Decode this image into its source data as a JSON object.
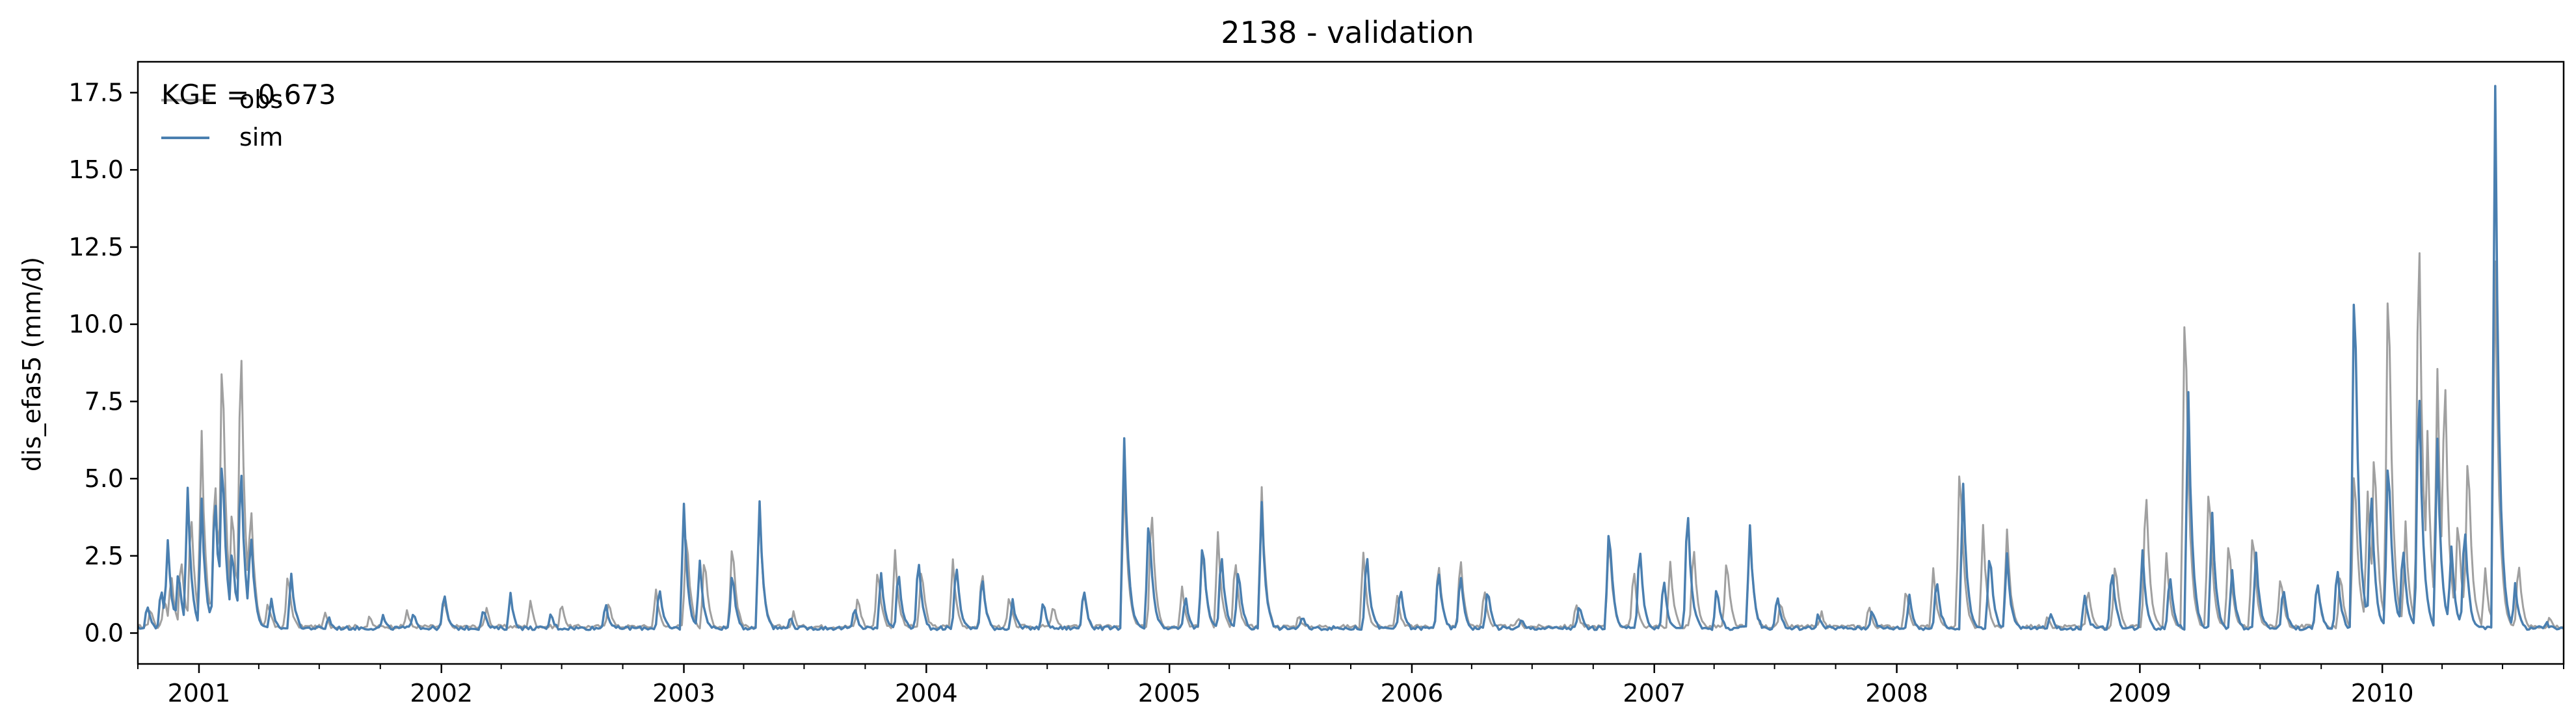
{
  "chart_data": {
    "type": "line",
    "title": "2138 - validation",
    "xlabel": "",
    "ylabel": "dis_efas5 (mm/d)",
    "annotation": "KGE = 0.673",
    "xlim": [
      "2000-10-01",
      "2010-10-01"
    ],
    "ylim": [
      -1.0,
      18.5
    ],
    "yticks": [
      0.0,
      2.5,
      5.0,
      7.5,
      10.0,
      12.5,
      15.0,
      17.5
    ],
    "ytick_labels": [
      "0.0",
      "2.5",
      "5.0",
      "7.5",
      "10.0",
      "12.5",
      "15.0",
      "17.5"
    ],
    "xtick_labels": [
      "2001",
      "2002",
      "2003",
      "2004",
      "2005",
      "2006",
      "2007",
      "2008",
      "2009",
      "2010"
    ],
    "xtick_dates": [
      "2001-01-01",
      "2002-01-01",
      "2003-01-01",
      "2004-01-01",
      "2005-01-01",
      "2006-01-01",
      "2007-01-01",
      "2008-01-01",
      "2009-01-01",
      "2010-01-01"
    ],
    "legend_position": "top-left",
    "grid": false,
    "series": [
      {
        "name": "obs",
        "color": "#a0a0a0",
        "baseline": 0.15,
        "peaks": [
          [
            "2000-10-20",
            0.8
          ],
          [
            "2000-11-10",
            1.2
          ],
          [
            "2000-11-20",
            2.0
          ],
          [
            "2000-12-05",
            2.6
          ],
          [
            "2000-12-20",
            4.2
          ],
          [
            "2001-01-05",
            6.5
          ],
          [
            "2001-01-25",
            5.5
          ],
          [
            "2001-02-05",
            10.0
          ],
          [
            "2001-02-20",
            4.5
          ],
          [
            "2001-03-05",
            10.3
          ],
          [
            "2001-03-20",
            4.5
          ],
          [
            "2001-04-15",
            1.0
          ],
          [
            "2001-05-15",
            2.0
          ],
          [
            "2001-07-10",
            0.6
          ],
          [
            "2001-09-15",
            0.5
          ],
          [
            "2001-11-10",
            0.7
          ],
          [
            "2002-01-05",
            1.1
          ],
          [
            "2002-03-10",
            0.8
          ],
          [
            "2002-05-15",
            1.0
          ],
          [
            "2002-07-01",
            1.0
          ],
          [
            "2002-09-10",
            1.1
          ],
          [
            "2002-11-20",
            1.4
          ],
          [
            "2003-01-05",
            3.5
          ],
          [
            "2003-02-01",
            2.6
          ],
          [
            "2003-03-15",
            3.1
          ],
          [
            "2003-04-25",
            4.0
          ],
          [
            "2003-06-15",
            0.6
          ],
          [
            "2003-09-20",
            1.2
          ],
          [
            "2003-10-20",
            2.2
          ],
          [
            "2003-11-15",
            2.6
          ],
          [
            "2003-12-25",
            2.2
          ],
          [
            "2004-02-10",
            2.3
          ],
          [
            "2004-03-25",
            2.1
          ],
          [
            "2004-05-05",
            1.2
          ],
          [
            "2004-07-10",
            0.9
          ],
          [
            "2004-08-25",
            1.4
          ],
          [
            "2004-10-25",
            5.0
          ],
          [
            "2004-12-05",
            4.4
          ],
          [
            "2005-01-20",
            1.5
          ],
          [
            "2005-02-20",
            3.0
          ],
          [
            "2005-03-15",
            3.2
          ],
          [
            "2005-04-10",
            2.5
          ],
          [
            "2005-05-20",
            4.7
          ],
          [
            "2005-07-15",
            0.6
          ],
          [
            "2005-10-20",
            2.6
          ],
          [
            "2005-12-10",
            1.2
          ],
          [
            "2006-02-10",
            2.4
          ],
          [
            "2006-03-15",
            2.6
          ],
          [
            "2006-04-20",
            1.5
          ],
          [
            "2006-06-10",
            0.5
          ],
          [
            "2006-09-05",
            1.0
          ],
          [
            "2006-10-25",
            3.3
          ],
          [
            "2006-12-01",
            2.2
          ],
          [
            "2007-01-25",
            2.3
          ],
          [
            "2007-03-01",
            3.0
          ],
          [
            "2007-04-20",
            2.5
          ],
          [
            "2007-05-25",
            3.3
          ],
          [
            "2007-07-10",
            1.0
          ],
          [
            "2007-09-10",
            0.6
          ],
          [
            "2007-11-20",
            0.9
          ],
          [
            "2008-01-15",
            1.5
          ],
          [
            "2008-02-25",
            2.0
          ],
          [
            "2008-04-05",
            6.0
          ],
          [
            "2008-05-10",
            3.4
          ],
          [
            "2008-06-15",
            3.3
          ],
          [
            "2008-08-15",
            0.6
          ],
          [
            "2008-10-15",
            1.5
          ],
          [
            "2008-11-25",
            2.5
          ],
          [
            "2009-01-10",
            5.0
          ],
          [
            "2009-02-10",
            2.5
          ],
          [
            "2009-03-10",
            11.8
          ],
          [
            "2009-04-15",
            5.2
          ],
          [
            "2009-05-15",
            3.2
          ],
          [
            "2009-06-20",
            3.6
          ],
          [
            "2009-08-01",
            2.0
          ],
          [
            "2009-09-25",
            1.8
          ],
          [
            "2009-10-30",
            2.0
          ],
          [
            "2009-11-20",
            6.0
          ],
          [
            "2009-12-10",
            4.5
          ],
          [
            "2009-12-20",
            6.5
          ],
          [
            "2010-01-10",
            12.8
          ],
          [
            "2010-02-05",
            3.5
          ],
          [
            "2010-02-25",
            14.5
          ],
          [
            "2010-03-10",
            6.5
          ],
          [
            "2010-03-25",
            8.5
          ],
          [
            "2010-04-05",
            9.2
          ],
          [
            "2010-04-25",
            4.0
          ],
          [
            "2010-05-10",
            6.4
          ],
          [
            "2010-06-05",
            2.0
          ],
          [
            "2010-06-20",
            12.0
          ],
          [
            "2010-07-25",
            2.5
          ],
          [
            "2010-09-10",
            0.5
          ]
        ]
      },
      {
        "name": "sim",
        "color": "#4a7fb0",
        "baseline": 0.1,
        "peaks": [
          [
            "2000-10-15",
            0.9
          ],
          [
            "2000-11-05",
            1.5
          ],
          [
            "2000-11-15",
            3.0
          ],
          [
            "2000-12-01",
            2.2
          ],
          [
            "2000-12-15",
            4.6
          ],
          [
            "2001-01-05",
            4.3
          ],
          [
            "2001-01-25",
            4.8
          ],
          [
            "2001-02-05",
            6.3
          ],
          [
            "2001-02-20",
            3.0
          ],
          [
            "2001-03-05",
            5.9
          ],
          [
            "2001-03-20",
            3.5
          ],
          [
            "2001-04-20",
            1.0
          ],
          [
            "2001-05-20",
            1.9
          ],
          [
            "2001-07-15",
            0.5
          ],
          [
            "2001-10-05",
            0.5
          ],
          [
            "2001-11-20",
            0.7
          ],
          [
            "2002-01-05",
            1.3
          ],
          [
            "2002-03-05",
            0.8
          ],
          [
            "2002-04-15",
            1.2
          ],
          [
            "2002-06-15",
            0.6
          ],
          [
            "2002-09-05",
            1.0
          ],
          [
            "2002-11-25",
            1.5
          ],
          [
            "2003-01-01",
            4.1
          ],
          [
            "2003-01-25",
            2.3
          ],
          [
            "2003-03-15",
            2.0
          ],
          [
            "2003-04-25",
            4.2
          ],
          [
            "2003-06-10",
            0.5
          ],
          [
            "2003-09-15",
            0.8
          ],
          [
            "2003-10-25",
            1.9
          ],
          [
            "2003-11-20",
            2.1
          ],
          [
            "2003-12-20",
            2.5
          ],
          [
            "2004-02-15",
            2.4
          ],
          [
            "2004-03-25",
            1.9
          ],
          [
            "2004-05-10",
            1.0
          ],
          [
            "2004-06-25",
            1.0
          ],
          [
            "2004-08-25",
            1.5
          ],
          [
            "2004-10-25",
            6.3
          ],
          [
            "2004-12-01",
            4.0
          ],
          [
            "2005-01-25",
            1.2
          ],
          [
            "2005-02-20",
            3.2
          ],
          [
            "2005-03-20",
            2.8
          ],
          [
            "2005-04-15",
            2.2
          ],
          [
            "2005-05-20",
            4.2
          ],
          [
            "2005-07-20",
            0.5
          ],
          [
            "2005-10-25",
            2.7
          ],
          [
            "2005-12-15",
            1.5
          ],
          [
            "2006-02-10",
            2.2
          ],
          [
            "2006-03-15",
            2.0
          ],
          [
            "2006-04-25",
            1.5
          ],
          [
            "2006-06-15",
            0.4
          ],
          [
            "2006-09-10",
            0.9
          ],
          [
            "2006-10-25",
            3.7
          ],
          [
            "2006-12-10",
            2.9
          ],
          [
            "2007-01-15",
            1.8
          ],
          [
            "2007-02-20",
            4.3
          ],
          [
            "2007-04-05",
            1.5
          ],
          [
            "2007-05-25",
            3.4
          ],
          [
            "2007-07-05",
            1.3
          ],
          [
            "2007-09-05",
            0.6
          ],
          [
            "2007-11-25",
            0.8
          ],
          [
            "2008-01-20",
            1.2
          ],
          [
            "2008-03-01",
            1.8
          ],
          [
            "2008-04-10",
            4.8
          ],
          [
            "2008-05-20",
            2.8
          ],
          [
            "2008-06-15",
            2.5
          ],
          [
            "2008-08-20",
            0.6
          ],
          [
            "2008-10-10",
            1.2
          ],
          [
            "2008-11-20",
            2.2
          ],
          [
            "2009-01-05",
            2.6
          ],
          [
            "2009-02-15",
            2.0
          ],
          [
            "2009-03-15",
            7.8
          ],
          [
            "2009-04-20",
            3.8
          ],
          [
            "2009-05-20",
            2.0
          ],
          [
            "2009-06-25",
            2.5
          ],
          [
            "2009-08-05",
            1.5
          ],
          [
            "2009-09-25",
            1.8
          ],
          [
            "2009-10-25",
            2.2
          ],
          [
            "2009-11-20",
            12.7
          ],
          [
            "2009-12-15",
            5.0
          ],
          [
            "2010-01-10",
            6.3
          ],
          [
            "2010-02-01",
            3.0
          ],
          [
            "2010-02-25",
            8.8
          ],
          [
            "2010-03-25",
            6.2
          ],
          [
            "2010-04-15",
            2.8
          ],
          [
            "2010-05-05",
            3.7
          ],
          [
            "2010-06-20",
            17.7
          ],
          [
            "2010-07-20",
            1.5
          ],
          [
            "2010-09-05",
            0.3
          ]
        ]
      }
    ]
  }
}
